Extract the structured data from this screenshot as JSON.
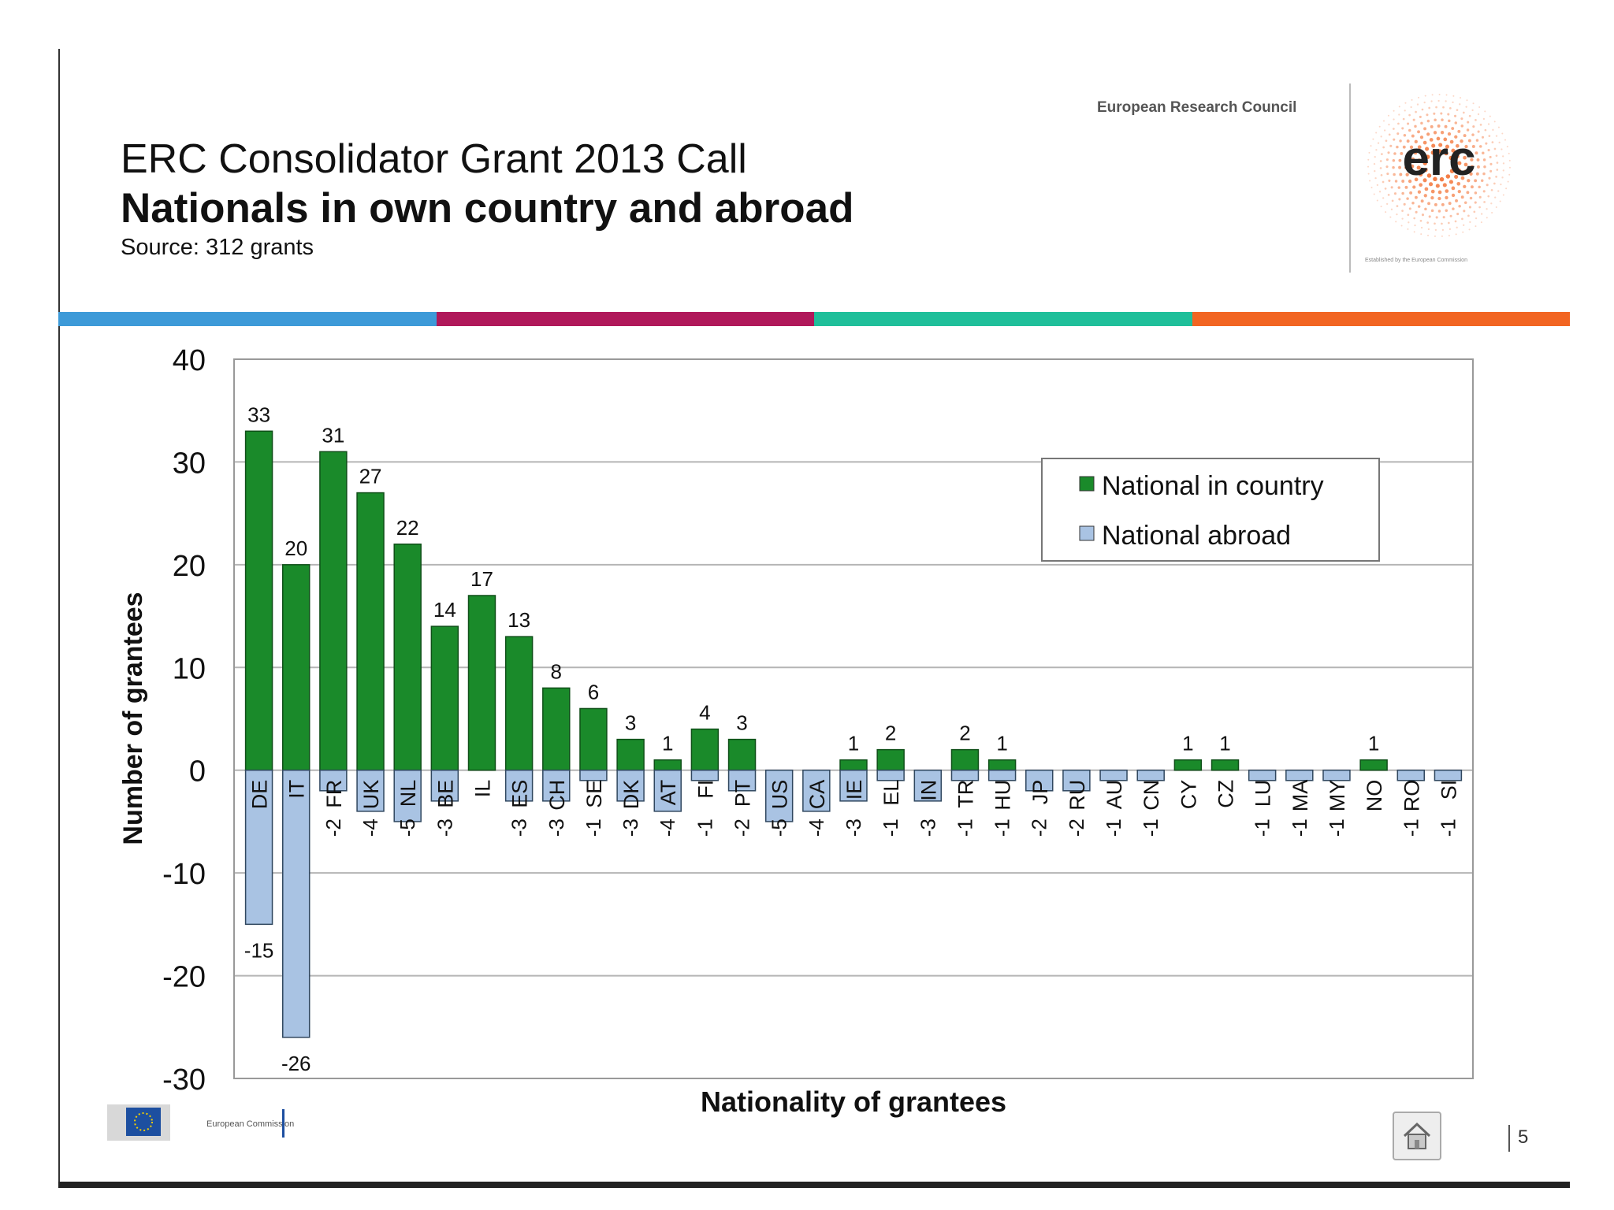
{
  "header": {
    "title_line1": "ERC Consolidator Grant 2013 Call",
    "title_line2": "Nationals in own country and abroad",
    "source": "Source: 312 grants",
    "erc_council": "European Research Council",
    "erc_logo_text": "erc",
    "erc_established": "Established by the European Commission"
  },
  "stripe_colors": [
    "#3d9ad8",
    "#b0185a",
    "#1fbf9a",
    "#f26522"
  ],
  "colors": {
    "in_country": "#1a8a2a",
    "abroad": "#a9c3e3"
  },
  "footer": {
    "ec_logo_text": "European Commission",
    "page_number": "5"
  },
  "chart_data": {
    "type": "bar",
    "stacked": true,
    "xlabel": "Nationality of grantees",
    "ylabel": "Number of grantees",
    "ylim": [
      -30,
      40
    ],
    "yticks": [
      40,
      30,
      20,
      10,
      0,
      -10,
      -20,
      -30
    ],
    "grid": true,
    "legend_position": "top-right",
    "categories": [
      "DE",
      "IT",
      "FR",
      "UK",
      "NL",
      "BE",
      "IL",
      "ES",
      "CH",
      "SE",
      "DK",
      "AT",
      "FI",
      "PT",
      "US",
      "CA",
      "IE",
      "EL",
      "IN",
      "TR",
      "HU",
      "JP",
      "RU",
      "AU",
      "CN",
      "CY",
      "CZ",
      "LU",
      "MA",
      "MY",
      "NO",
      "RO",
      "SI"
    ],
    "series": [
      {
        "name": "National in country",
        "values": [
          33,
          20,
          31,
          27,
          22,
          14,
          17,
          13,
          8,
          6,
          3,
          1,
          4,
          3,
          0,
          0,
          1,
          2,
          0,
          2,
          1,
          0,
          0,
          0,
          0,
          1,
          1,
          0,
          0,
          0,
          1,
          0,
          0
        ],
        "labels": [
          "33",
          "20",
          "31",
          "27",
          "22",
          "14",
          "17",
          "13",
          "8",
          "6",
          "3",
          "1",
          "4",
          "3",
          "",
          "",
          "1",
          "2",
          "",
          "2",
          "1",
          "",
          "",
          "",
          "",
          "1",
          "1",
          "",
          "",
          "",
          "1",
          "",
          ""
        ]
      },
      {
        "name": "National abroad",
        "values": [
          -15,
          -26,
          -2,
          -4,
          -5,
          -3,
          0,
          -3,
          -3,
          -1,
          -3,
          -4,
          -1,
          -2,
          -5,
          -4,
          -3,
          -1,
          -3,
          -1,
          -1,
          -2,
          -2,
          -1,
          -1,
          0,
          0,
          -1,
          -1,
          -1,
          0,
          -1,
          -1
        ],
        "labels": [
          "-15",
          "-26",
          "-2",
          "-4",
          "-5",
          "-3",
          "",
          "-3",
          "-3",
          "-1",
          "-3",
          "-4",
          "-1",
          "-2",
          "-5",
          "-4",
          "-3",
          "-1",
          "-3",
          "-1",
          "-1",
          "-2",
          "-2",
          "-1",
          "-1",
          "",
          "",
          "-1",
          "-1",
          "-1",
          "",
          "-1",
          "-1"
        ]
      }
    ]
  }
}
